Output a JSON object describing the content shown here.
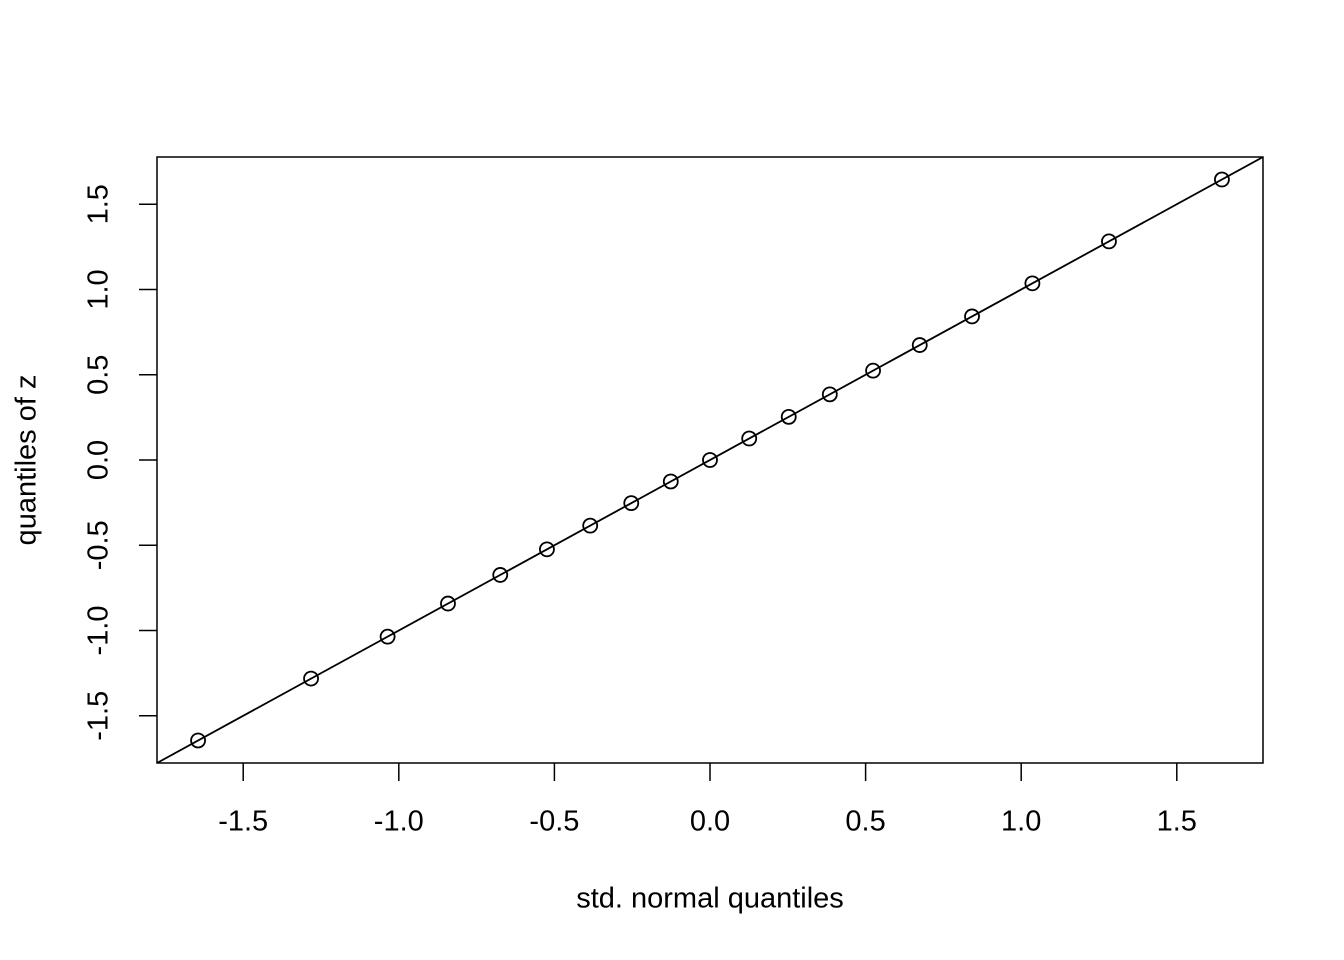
{
  "chart_data": {
    "type": "scatter",
    "x_label": "std. normal quantiles",
    "y_label": "quantiles of z",
    "x": [
      -1.645,
      -1.282,
      -1.036,
      -0.842,
      -0.674,
      -0.524,
      -0.385,
      -0.253,
      -0.126,
      0,
      0.126,
      0.253,
      0.385,
      0.524,
      0.674,
      0.842,
      1.036,
      1.282,
      1.645
    ],
    "y": [
      -1.645,
      -1.282,
      -1.036,
      -0.842,
      -0.674,
      -0.524,
      -0.385,
      -0.253,
      -0.126,
      0,
      0.126,
      0.253,
      0.385,
      0.524,
      0.674,
      0.842,
      1.036,
      1.282,
      1.645
    ],
    "color": "#000000",
    "reference_line": {
      "intercept": 0,
      "slope": 1
    },
    "xlim": [
      -1.777,
      1.777
    ],
    "ylim": [
      -1.777,
      1.777
    ],
    "xticks": [
      {
        "value": -1.5,
        "label": "-1.5"
      },
      {
        "value": -1,
        "label": "-1.0"
      },
      {
        "value": -0.5,
        "label": "-0.5"
      },
      {
        "value": 0,
        "label": "0.0"
      },
      {
        "value": 0.5,
        "label": "0.5"
      },
      {
        "value": 1,
        "label": "1.0"
      },
      {
        "value": 1.5,
        "label": "1.5"
      }
    ],
    "yticks": [
      {
        "value": -1.5,
        "label": "-1.5"
      },
      {
        "value": -1,
        "label": "-1.0"
      },
      {
        "value": -0.5,
        "label": "-0.5"
      },
      {
        "value": 0,
        "label": "0.0"
      },
      {
        "value": 0.5,
        "label": "0.5"
      },
      {
        "value": 1,
        "label": "1.0"
      },
      {
        "value": 1.5,
        "label": "1.5"
      }
    ]
  }
}
